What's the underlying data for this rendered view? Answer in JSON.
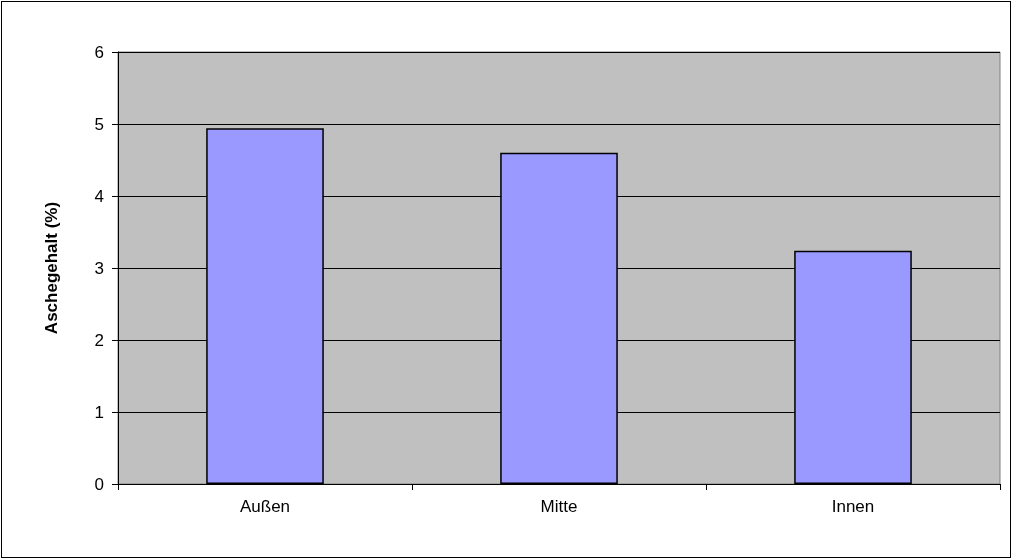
{
  "chart_data": {
    "type": "bar",
    "ylabel": "Aschegehalt (%)",
    "categories": [
      "Außen",
      "Mitte",
      "Innen"
    ],
    "values": [
      4.94,
      4.6,
      3.24
    ],
    "color": "#9999ff",
    "ylim": [
      0,
      6
    ],
    "yticks": [
      0,
      1,
      2,
      3,
      4,
      5,
      6
    ],
    "grid": "y"
  }
}
